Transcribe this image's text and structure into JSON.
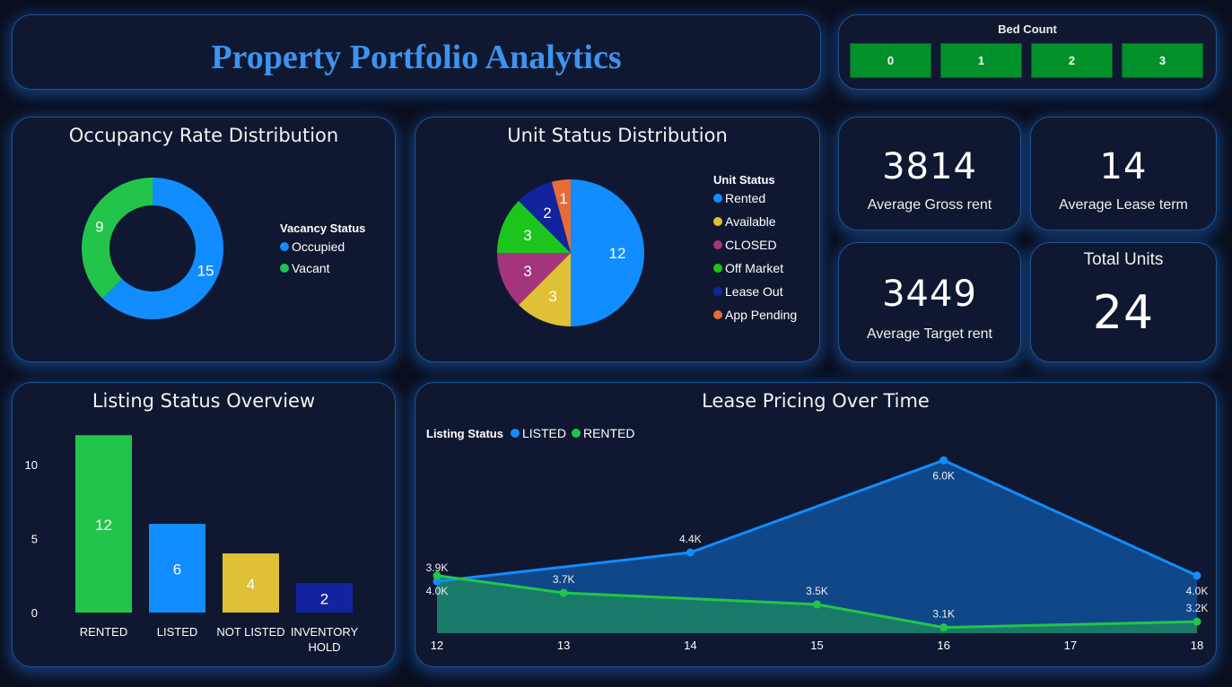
{
  "header": {
    "title": "Property Portfolio Analytics"
  },
  "bed_count": {
    "label": "Bed Count",
    "options": [
      "0",
      "1",
      "2",
      "3"
    ],
    "button_color": "#02902a"
  },
  "occupancy": {
    "title": "Occupancy Rate Distribution",
    "legend_title": "Vacancy Status",
    "chart_data": {
      "type": "pie",
      "variant": "donut",
      "title": "Occupancy Rate Distribution",
      "legend_title": "Vacancy Status",
      "legend_position": "right",
      "categories": [
        "Occupied",
        "Vacant"
      ],
      "values": [
        15,
        9
      ],
      "colors": [
        "#118dff",
        "#22c54a"
      ]
    }
  },
  "unit_status": {
    "title": "Unit Status Distribution",
    "legend_title": "Unit Status",
    "chart_data": {
      "type": "pie",
      "title": "Unit Status Distribution",
      "legend_title": "Unit Status",
      "legend_position": "right",
      "categories": [
        "Rented",
        "Available",
        "CLOSED",
        "Off Market",
        "Lease Out",
        "App Pending"
      ],
      "values": [
        12,
        3,
        3,
        3,
        2,
        1
      ],
      "colors": [
        "#118dff",
        "#e0c034",
        "#a5357a",
        "#1bc51e",
        "#12239e",
        "#e66c37"
      ]
    }
  },
  "kpis": [
    {
      "value": "3814",
      "label": "Average Gross rent"
    },
    {
      "value": "14",
      "label": "Average Lease term"
    },
    {
      "value": "3449",
      "label": "Average Target rent"
    },
    {
      "value": "24",
      "label": "Total Units"
    }
  ],
  "listing_status": {
    "title": "Listing Status Overview",
    "chart_data": {
      "type": "bar",
      "title": "Listing Status Overview",
      "categories": [
        "RENTED",
        "LISTED",
        "NOT LISTED",
        "INVENTORY HOLD"
      ],
      "category_lines": [
        [
          "RENTED"
        ],
        [
          "LISTED"
        ],
        [
          "NOT LISTED"
        ],
        [
          "INVENTORY",
          "HOLD"
        ]
      ],
      "values": [
        12,
        6,
        4,
        2
      ],
      "colors": [
        "#22c54a",
        "#118dff",
        "#e0c034",
        "#12239e"
      ],
      "yticks": [
        0,
        5,
        10
      ],
      "ylim": [
        0,
        12.5
      ],
      "xlabel": "",
      "ylabel": ""
    }
  },
  "lease_pricing": {
    "title": "Lease Pricing Over Time",
    "legend_title": "Listing Status",
    "chart_data": {
      "type": "area",
      "title": "Lease Pricing Over Time",
      "legend_title": "Listing Status",
      "legend_position": "top-left",
      "x": [
        12,
        13,
        14,
        15,
        16,
        17,
        18
      ],
      "xticks": [
        "12",
        "13",
        "14",
        "15",
        "16",
        "17",
        "18"
      ],
      "ylim": [
        3000,
        6300
      ],
      "series": [
        {
          "name": "LISTED",
          "color": "#118dff",
          "fill": "#0f4788",
          "points": [
            {
              "x": 12,
              "y": 3900,
              "label": "3.9K",
              "label_pos": "above"
            },
            {
              "x": 14,
              "y": 4400,
              "label": "4.4K",
              "label_pos": "above"
            },
            {
              "x": 16,
              "y": 6000,
              "label": "6.0K",
              "label_pos": "below"
            },
            {
              "x": 18,
              "y": 4000,
              "label": "4.0K",
              "label_pos": "below"
            }
          ]
        },
        {
          "name": "RENTED",
          "color": "#22c54a",
          "fill": "#1a7a6a",
          "points": [
            {
              "x": 12,
              "y": 4000,
              "label": "4.0K",
              "label_pos": "below"
            },
            {
              "x": 13,
              "y": 3700,
              "label": "3.7K",
              "label_pos": "above"
            },
            {
              "x": 15,
              "y": 3500,
              "label": "3.5K",
              "label_pos": "above"
            },
            {
              "x": 16,
              "y": 3100,
              "label": "3.1K",
              "label_pos": "above"
            },
            {
              "x": 18,
              "y": 3200,
              "label": "3.2K",
              "label_pos": "above"
            }
          ]
        }
      ]
    }
  }
}
